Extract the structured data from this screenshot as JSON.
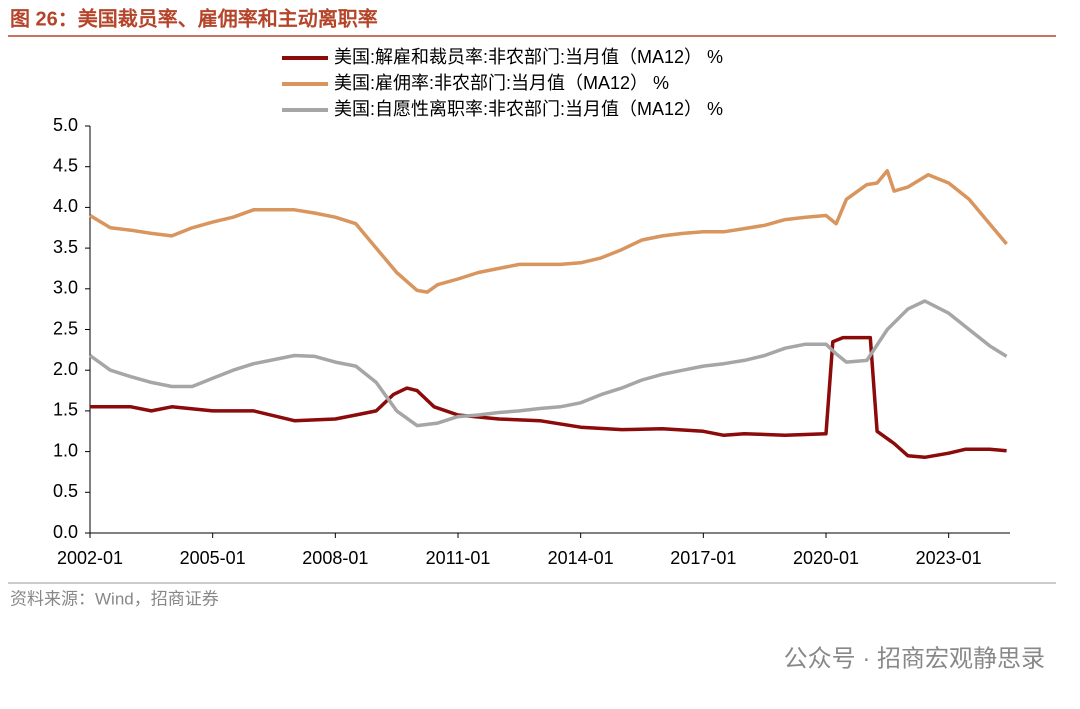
{
  "chart_data": {
    "type": "line",
    "title": "图 26：美国裁员率、雇佣率和主动离职率",
    "source": "资料来源：Wind，招商证券",
    "watermark": "公众号 · 招商宏观静思录",
    "xlim": [
      "2002-01",
      "2024-07"
    ],
    "xticks": [
      "2002-01",
      "2005-01",
      "2008-01",
      "2011-01",
      "2014-01",
      "2017-01",
      "2020-01",
      "2023-01"
    ],
    "ylim": [
      0,
      5
    ],
    "yticks": [
      {
        "value": 0,
        "label": "0.0"
      },
      0.5,
      {
        "value": 1,
        "label": "1.0"
      },
      1.5,
      {
        "value": 2,
        "label": "2.0"
      },
      2.5,
      {
        "value": 3,
        "label": "3.0"
      },
      3.5,
      {
        "value": 4,
        "label": "4.0"
      },
      4.5,
      {
        "value": 5,
        "label": "5.0"
      }
    ],
    "series": [
      {
        "name": "美国:解雇和裁员率:非农部门:当月值（MA12） %",
        "color": "#8b0a0a",
        "x": [
          "2002-01",
          "2003-01",
          "2003-07",
          "2004-01",
          "2005-01",
          "2006-01",
          "2007-01",
          "2008-01",
          "2008-07",
          "2009-01",
          "2009-06",
          "2009-10",
          "2010-01",
          "2010-06",
          "2011-01",
          "2012-01",
          "2013-01",
          "2014-01",
          "2015-01",
          "2016-01",
          "2017-01",
          "2017-07",
          "2018-01",
          "2019-01",
          "2020-01",
          "2020-03",
          "2020-06",
          "2021-02",
          "2021-04",
          "2021-09",
          "2022-01",
          "2022-06",
          "2023-01",
          "2023-06",
          "2024-01",
          "2024-06"
        ],
        "values": [
          1.55,
          1.55,
          1.5,
          1.55,
          1.5,
          1.5,
          1.38,
          1.4,
          1.45,
          1.5,
          1.7,
          1.78,
          1.75,
          1.55,
          1.45,
          1.4,
          1.38,
          1.3,
          1.27,
          1.28,
          1.25,
          1.2,
          1.22,
          1.2,
          1.22,
          2.35,
          2.4,
          2.4,
          1.25,
          1.1,
          0.95,
          0.93,
          0.98,
          1.03,
          1.03,
          1.01
        ]
      },
      {
        "name": "美国:雇佣率:非农部门:当月值（MA12） %",
        "color": "#d9955e",
        "x": [
          "2002-01",
          "2002-07",
          "2003-01",
          "2003-07",
          "2004-01",
          "2004-07",
          "2005-01",
          "2005-07",
          "2006-01",
          "2006-07",
          "2007-01",
          "2007-07",
          "2008-01",
          "2008-07",
          "2009-01",
          "2009-07",
          "2010-01",
          "2010-04",
          "2010-07",
          "2011-01",
          "2011-07",
          "2012-01",
          "2012-07",
          "2013-01",
          "2013-07",
          "2014-01",
          "2014-07",
          "2015-01",
          "2015-07",
          "2016-01",
          "2016-07",
          "2017-01",
          "2017-07",
          "2018-01",
          "2018-07",
          "2019-01",
          "2019-07",
          "2020-01",
          "2020-04",
          "2020-07",
          "2021-01",
          "2021-04",
          "2021-07",
          "2021-09",
          "2022-01",
          "2022-07",
          "2023-01",
          "2023-07",
          "2024-01",
          "2024-06"
        ],
        "values": [
          3.9,
          3.75,
          3.72,
          3.68,
          3.65,
          3.75,
          3.82,
          3.88,
          3.97,
          3.97,
          3.97,
          3.93,
          3.88,
          3.8,
          3.5,
          3.2,
          2.98,
          2.96,
          3.05,
          3.12,
          3.2,
          3.25,
          3.3,
          3.3,
          3.3,
          3.32,
          3.38,
          3.48,
          3.6,
          3.65,
          3.68,
          3.7,
          3.7,
          3.74,
          3.78,
          3.85,
          3.88,
          3.9,
          3.8,
          4.1,
          4.28,
          4.3,
          4.45,
          4.2,
          4.25,
          4.4,
          4.3,
          4.1,
          3.8,
          3.55
        ]
      },
      {
        "name": "美国:自愿性离职率:非农部门:当月值（MA12） %",
        "color": "#a6a6a6",
        "x": [
          "2002-01",
          "2002-07",
          "2003-01",
          "2003-07",
          "2004-01",
          "2004-07",
          "2005-01",
          "2005-07",
          "2006-01",
          "2006-07",
          "2007-01",
          "2007-07",
          "2008-01",
          "2008-07",
          "2009-01",
          "2009-07",
          "2010-01",
          "2010-07",
          "2011-01",
          "2011-07",
          "2012-01",
          "2012-07",
          "2013-01",
          "2013-07",
          "2014-01",
          "2014-07",
          "2015-01",
          "2015-07",
          "2016-01",
          "2016-07",
          "2017-01",
          "2017-07",
          "2018-01",
          "2018-07",
          "2019-01",
          "2019-07",
          "2020-01",
          "2020-04",
          "2020-07",
          "2021-01",
          "2021-07",
          "2022-01",
          "2022-06",
          "2023-01",
          "2023-07",
          "2024-01",
          "2024-06"
        ],
        "values": [
          2.18,
          2.0,
          1.92,
          1.85,
          1.8,
          1.8,
          1.9,
          2.0,
          2.08,
          2.13,
          2.18,
          2.17,
          2.1,
          2.05,
          1.85,
          1.5,
          1.32,
          1.35,
          1.43,
          1.45,
          1.48,
          1.5,
          1.53,
          1.55,
          1.6,
          1.7,
          1.78,
          1.88,
          1.95,
          2.0,
          2.05,
          2.08,
          2.12,
          2.18,
          2.27,
          2.32,
          2.32,
          2.2,
          2.1,
          2.12,
          2.5,
          2.75,
          2.85,
          2.7,
          2.5,
          2.3,
          2.17
        ]
      }
    ]
  }
}
